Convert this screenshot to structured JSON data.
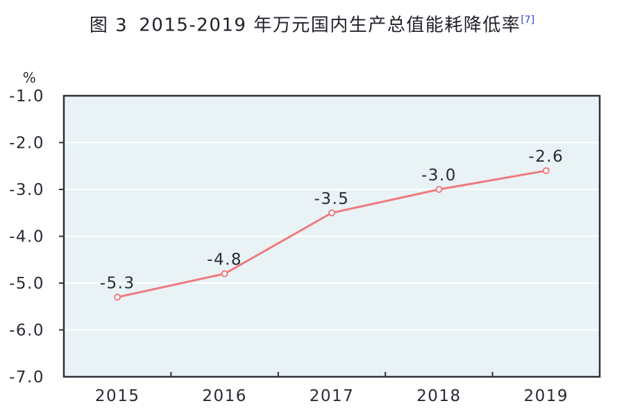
{
  "figure": {
    "title_prefix": "图 3",
    "title_main": "2015-2019 年万元国内生产总值能耗降低率",
    "title_sup": "[7]"
  },
  "chart_data": {
    "type": "line",
    "title": "图 3 2015-2019 年万元国内生产总值能耗降低率[7]",
    "unit_label": "%",
    "categories": [
      "2015",
      "2016",
      "2017",
      "2018",
      "2019"
    ],
    "values": [
      -5.3,
      -4.8,
      -3.5,
      -3.0,
      -2.6
    ],
    "data_labels": [
      "-5.3",
      "-4.8",
      "-3.5",
      "-3.0",
      "-2.6"
    ],
    "y_ticks": {
      "values": [
        -1.0,
        -2.0,
        -3.0,
        -4.0,
        -5.0,
        -6.0,
        -7.0
      ],
      "labels": [
        "-1.0",
        "-2.0",
        "-3.0",
        "-4.0",
        "-5.0",
        "-6.0",
        "-7.0"
      ]
    },
    "ylim": [
      -7.0,
      -1.0
    ],
    "grid": true,
    "legend": "none",
    "colors": {
      "line": "#ee7a7e",
      "marker_fill": "#ffffff",
      "plot_bg": "#e9f3f5",
      "gridline": "#ffffff",
      "axis": "#2e3138",
      "footnote_blue": "#2b46c8"
    }
  }
}
